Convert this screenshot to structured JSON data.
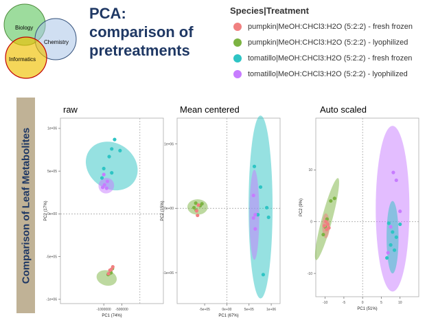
{
  "slide": {
    "title_lines": [
      "PCA:",
      "comparison of",
      "pretreatments"
    ],
    "side_label": "Comparison of Leaf Metabolites",
    "venn": {
      "circles": [
        {
          "label": "Biology",
          "color": "#4cc04c"
        },
        {
          "label": "Chemistry",
          "color": "#a9c4e8"
        },
        {
          "label": "Informatics",
          "color": "#f0c000"
        }
      ]
    }
  },
  "legend": {
    "title": "Species|Treatment",
    "entries": [
      {
        "label": "pumpkin|MeOH:CHCl3:H2O (5:2:2) - fresh frozen",
        "color": "#f08080"
      },
      {
        "label": "pumpkin|MeOH:CHCl3:H2O (5:2:2) - lyophilized",
        "color": "#7cb342"
      },
      {
        "label": "tomatillo|MeOH:CHCl3:H2O (5:2:2) - fresh frozen",
        "color": "#2ec4c4"
      },
      {
        "label": "tomatillo|MeOH:CHCl3:H2O (5:2:2) - lyophilized",
        "color": "#c77cff"
      }
    ]
  },
  "chart_data": [
    {
      "type": "scatter",
      "title": "raw",
      "xlabel": "PC1 (74%)",
      "ylabel": "PC2 (17%)",
      "xlim": [
        -2200000,
        650000
      ],
      "ylim": [
        -1050000,
        1120000
      ],
      "xticks": [
        -1000000,
        -500000
      ],
      "xtick_labels": [
        "-1000000",
        "-500000"
      ],
      "yticks": [
        -1000000,
        -500000,
        0,
        500000,
        1000000
      ],
      "ytick_labels": [
        "-1e+06",
        "-5e+05",
        "0e+00",
        "5e+05",
        "1e+06"
      ],
      "ellipses": [
        {
          "group": 2,
          "cx": -780000,
          "cy": 560000,
          "rx": 630000,
          "ry": 320000,
          "angle_deg": -55
        },
        {
          "group": 3,
          "cx": -930000,
          "cy": 330000,
          "rx": 220000,
          "ry": 90000,
          "angle_deg": -45
        },
        {
          "group": 1,
          "cx": -920000,
          "cy": -750000,
          "rx": 210000,
          "ry": 120000,
          "angle_deg": -75
        }
      ],
      "series": [
        {
          "group": 2,
          "points": [
            [
              -700000,
              870000
            ],
            [
              -780000,
              760000
            ],
            [
              -550000,
              740000
            ],
            [
              -850000,
              670000
            ],
            [
              -1000000,
              530000
            ],
            [
              -780000,
              480000
            ],
            [
              -1050000,
              420000
            ]
          ]
        },
        {
          "group": 3,
          "points": [
            [
              -1000000,
              460000
            ],
            [
              -900000,
              380000
            ],
            [
              -980000,
              340000
            ],
            [
              -1030000,
              310000
            ],
            [
              -920000,
              300000
            ]
          ]
        },
        {
          "group": 1,
          "points": [
            [
              -760000,
              -640000
            ],
            [
              -810000,
              -670000
            ],
            [
              -850000,
              -700000
            ],
            [
              -880000,
              -710000
            ],
            [
              -800000,
              -690000
            ]
          ]
        },
        {
          "group": 0,
          "points": [
            [
              -750000,
              -620000
            ],
            [
              -830000,
              -660000
            ],
            [
              -870000,
              -700000
            ],
            [
              -790000,
              -650000
            ]
          ]
        }
      ]
    },
    {
      "type": "scatter",
      "title": "Mean centered",
      "xlabel": "PC1 (67%)",
      "ylabel": "PC2 (15%)",
      "xlim": [
        -1120000,
        1200000
      ],
      "ylim": [
        -1480000,
        1400000
      ],
      "xticks": [
        -500000,
        0,
        500000,
        1000000
      ],
      "xtick_labels": [
        "-5e+05",
        "0e+00",
        "5e+05",
        "1e+06"
      ],
      "yticks": [
        -1000000,
        0,
        1000000
      ],
      "ytick_labels": [
        "-1e+06",
        "0e+00",
        "1e+06"
      ],
      "ellipses": [
        {
          "group": 2,
          "cx": 760000,
          "cy": 20000,
          "rx": 270000,
          "ry": 1420000,
          "angle_deg": 0
        },
        {
          "group": 3,
          "cx": 620000,
          "cy": -100000,
          "rx": 110000,
          "ry": 700000,
          "angle_deg": 0
        },
        {
          "group": 1,
          "cx": -660000,
          "cy": 20000,
          "rx": 230000,
          "ry": 120000,
          "angle_deg": 0
        }
      ],
      "series": [
        {
          "group": 2,
          "points": [
            [
              620000,
              650000
            ],
            [
              760000,
              330000
            ],
            [
              900000,
              10000
            ],
            [
              700000,
              -100000
            ],
            [
              940000,
              -140000
            ],
            [
              820000,
              -1030000
            ]
          ]
        },
        {
          "group": 3,
          "points": [
            [
              600000,
              200000
            ],
            [
              640000,
              -100000
            ],
            [
              600000,
              -150000
            ],
            [
              640000,
              -320000
            ]
          ]
        },
        {
          "group": 1,
          "points": [
            [
              -700000,
              80000
            ],
            [
              -600000,
              40000
            ],
            [
              -560000,
              70000
            ],
            [
              -740000,
              10000
            ],
            [
              -690000,
              -30000
            ]
          ]
        },
        {
          "group": 0,
          "points": [
            [
              -640000,
              50000
            ],
            [
              -680000,
              -40000
            ],
            [
              -660000,
              -110000
            ]
          ]
        }
      ]
    },
    {
      "type": "scatter",
      "title": "Auto scaled",
      "xlabel": "PC1 (51%)",
      "ylabel": "PC2 (9%)",
      "xlim": [
        -12.5,
        15
      ],
      "ylim": [
        -14.5,
        20
      ],
      "xticks": [
        -10,
        -5,
        0,
        5,
        10
      ],
      "xtick_labels": [
        "-10",
        "-5",
        "0",
        "5",
        "10"
      ],
      "yticks": [
        -10,
        0,
        10
      ],
      "ytick_labels": [
        "-10",
        "0",
        "10"
      ],
      "ellipses": [
        {
          "group": 3,
          "cx": 8,
          "cy": 2.5,
          "rx": 4.5,
          "ry": 16,
          "angle_deg": 0
        },
        {
          "group": 2,
          "cx": 8,
          "cy": -3,
          "rx": 1.6,
          "ry": 7,
          "angle_deg": 0
        },
        {
          "group": 1,
          "cx": -9.5,
          "cy": 0.5,
          "rx": 1.4,
          "ry": 8.2,
          "angle_deg": 15
        },
        {
          "group": 0,
          "cx": -9.8,
          "cy": -0.8,
          "rx": 1.0,
          "ry": 2.4,
          "angle_deg": 0
        }
      ],
      "series": [
        {
          "group": 2,
          "points": [
            [
              7,
              -0.3
            ],
            [
              10,
              -0.5
            ],
            [
              8,
              -2
            ],
            [
              9,
              -3
            ],
            [
              7.5,
              -4.5
            ],
            [
              8.5,
              -5.5
            ],
            [
              6.5,
              -7
            ]
          ]
        },
        {
          "group": 3,
          "points": [
            [
              8.2,
              9.5
            ],
            [
              9,
              8
            ],
            [
              10,
              2
            ],
            [
              7.5,
              -1
            ],
            [
              6.8,
              -6
            ]
          ]
        },
        {
          "group": 1,
          "points": [
            [
              -7.5,
              4.5
            ],
            [
              -8.5,
              4
            ],
            [
              -9.5,
              0.5
            ],
            [
              -10,
              -1
            ],
            [
              -10.5,
              -2.5
            ]
          ]
        },
        {
          "group": 0,
          "points": [
            [
              -9.8,
              0
            ],
            [
              -9.3,
              -0.5
            ],
            [
              -10.2,
              -0.8
            ],
            [
              -9.6,
              -1.5
            ],
            [
              -9,
              -1.2
            ]
          ]
        }
      ]
    }
  ]
}
